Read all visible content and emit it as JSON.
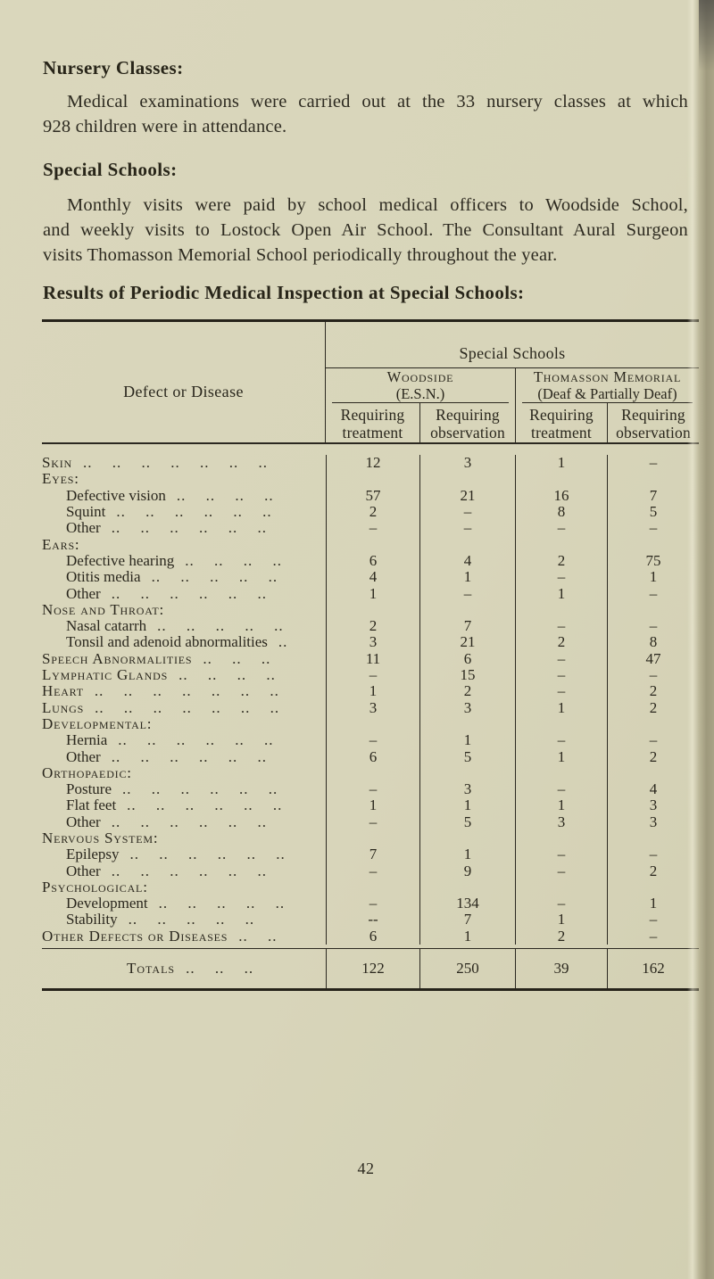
{
  "headings": {
    "nursery": "Nursery Classes:",
    "special": "Special Schools:",
    "results": "Results of Periodic Medical Inspection at Special Schools:"
  },
  "paragraphs": {
    "nursery_lines": [
      "Medical examinations were carried out at the 33 nursery classes at which",
      "928 children were in attendance."
    ],
    "special_lines": [
      "Monthly visits were paid by school medical officers to Woodside School,",
      "and weekly visits to Lostock Open Air School. The Consultant Aural Surgeon",
      "visits Thomasson Memorial School periodically throughout the year."
    ]
  },
  "table": {
    "corner_header": "Defect or Disease",
    "top_header": "Special Schools",
    "groups": [
      {
        "name": "Woodside",
        "sub": "(E.S.N.)"
      },
      {
        "name": "Thomasson Memorial",
        "sub": "(Deaf & Partially Deaf)"
      }
    ],
    "columns": [
      {
        "line1": "Requiring",
        "line2": "treatment"
      },
      {
        "line1": "Requiring",
        "line2": "observation"
      },
      {
        "line1": "Requiring",
        "line2": "treatment"
      },
      {
        "line1": "Requiring",
        "line2": "observation"
      }
    ],
    "rows": [
      {
        "label": "Skin",
        "type": "cat",
        "dots": ".. .. .. .. .. .. ..",
        "values": [
          "12",
          "3",
          "1",
          "–"
        ]
      },
      {
        "label": "Eyes:",
        "type": "cat",
        "dots": "",
        "values": [
          "",
          "",
          "",
          ""
        ]
      },
      {
        "label": "Defective vision",
        "type": "sub",
        "dots": ".. .. .. ..",
        "values": [
          "57",
          "21",
          "16",
          "7"
        ]
      },
      {
        "label": "Squint",
        "type": "sub",
        "dots": ".. .. .. .. .. ..",
        "values": [
          "2",
          "–",
          "8",
          "5"
        ]
      },
      {
        "label": "Other",
        "type": "sub",
        "dots": ".. .. .. .. .. ..",
        "values": [
          "–",
          "–",
          "–",
          "–"
        ]
      },
      {
        "label": "Ears:",
        "type": "cat",
        "dots": "",
        "values": [
          "",
          "",
          "",
          ""
        ]
      },
      {
        "label": "Defective hearing",
        "type": "sub",
        "dots": ".. .. .. ..",
        "values": [
          "6",
          "4",
          "2",
          "75"
        ]
      },
      {
        "label": "Otitis media",
        "type": "sub",
        "dots": ".. .. .. .. ..",
        "values": [
          "4",
          "1",
          "–",
          "1"
        ]
      },
      {
        "label": "Other",
        "type": "sub",
        "dots": ".. .. .. .. .. ..",
        "values": [
          "1",
          "–",
          "1",
          "–"
        ]
      },
      {
        "label": "Nose and Throat:",
        "type": "cat",
        "dots": "",
        "values": [
          "",
          "",
          "",
          ""
        ]
      },
      {
        "label": "Nasal catarrh",
        "type": "sub",
        "dots": ".. .. .. .. ..",
        "values": [
          "2",
          "7",
          "–",
          "–"
        ]
      },
      {
        "label": "Tonsil and adenoid abnormalities",
        "type": "sub",
        "dots": "..",
        "values": [
          "3",
          "21",
          "2",
          "8"
        ]
      },
      {
        "label": "Speech Abnormalities",
        "type": "cat",
        "dots": ".. .. ..",
        "values": [
          "11",
          "6",
          "–",
          "47"
        ]
      },
      {
        "label": "Lymphatic Glands",
        "type": "cat",
        "dots": ".. .. .. ..",
        "values": [
          "–",
          "15",
          "–",
          "–"
        ]
      },
      {
        "label": "Heart",
        "type": "cat",
        "dots": ".. .. .. .. .. .. ..",
        "values": [
          "1",
          "2",
          "–",
          "2"
        ]
      },
      {
        "label": "Lungs",
        "type": "cat",
        "dots": ".. .. .. .. .. .. ..",
        "values": [
          "3",
          "3",
          "1",
          "2"
        ]
      },
      {
        "label": "Developmental:",
        "type": "cat",
        "dots": "",
        "values": [
          "",
          "",
          "",
          ""
        ]
      },
      {
        "label": "Hernia",
        "type": "sub",
        "dots": ".. .. .. .. .. ..",
        "values": [
          "–",
          "1",
          "–",
          "–"
        ]
      },
      {
        "label": "Other",
        "type": "sub",
        "dots": ".. .. .. .. .. ..",
        "values": [
          "6",
          "5",
          "1",
          "2"
        ]
      },
      {
        "label": "Orthopaedic:",
        "type": "cat",
        "dots": "",
        "values": [
          "",
          "",
          "",
          ""
        ]
      },
      {
        "label": "Posture",
        "type": "sub",
        "dots": ".. .. .. .. .. ..",
        "values": [
          "–",
          "3",
          "–",
          "4"
        ]
      },
      {
        "label": "Flat feet",
        "type": "sub",
        "dots": ".. .. .. .. .. ..",
        "values": [
          "1",
          "1",
          "1",
          "3"
        ]
      },
      {
        "label": "Other",
        "type": "sub",
        "dots": ".. .. .. .. .. ..",
        "values": [
          "–",
          "5",
          "3",
          "3"
        ]
      },
      {
        "label": "Nervous System:",
        "type": "cat",
        "dots": "",
        "values": [
          "",
          "",
          "",
          ""
        ]
      },
      {
        "label": "Epilepsy",
        "type": "sub",
        "dots": ".. .. .. .. .. ..",
        "values": [
          "7",
          "1",
          "–",
          "–"
        ]
      },
      {
        "label": "Other",
        "type": "sub",
        "dots": ".. .. .. .. .. ..",
        "values": [
          "–",
          "9",
          "–",
          "2"
        ]
      },
      {
        "label": "Psychological:",
        "type": "cat",
        "dots": "",
        "values": [
          "",
          "",
          "",
          ""
        ]
      },
      {
        "label": "Development",
        "type": "sub",
        "dots": ".. .. .. .. ..",
        "values": [
          "–",
          "134",
          "–",
          "1"
        ]
      },
      {
        "label": "Stability",
        "type": "sub",
        "dots": ".. .. .. .. ..",
        "values": [
          "--",
          "7",
          "1",
          "–"
        ]
      },
      {
        "label": "Other Defects or Diseases",
        "type": "cat",
        "dots": ".. ..",
        "values": [
          "6",
          "1",
          "2",
          "–"
        ]
      }
    ],
    "totals": {
      "label": "Totals",
      "dots": ".. .. ..",
      "values": [
        "122",
        "250",
        "39",
        "162"
      ]
    }
  },
  "page_number": "42"
}
